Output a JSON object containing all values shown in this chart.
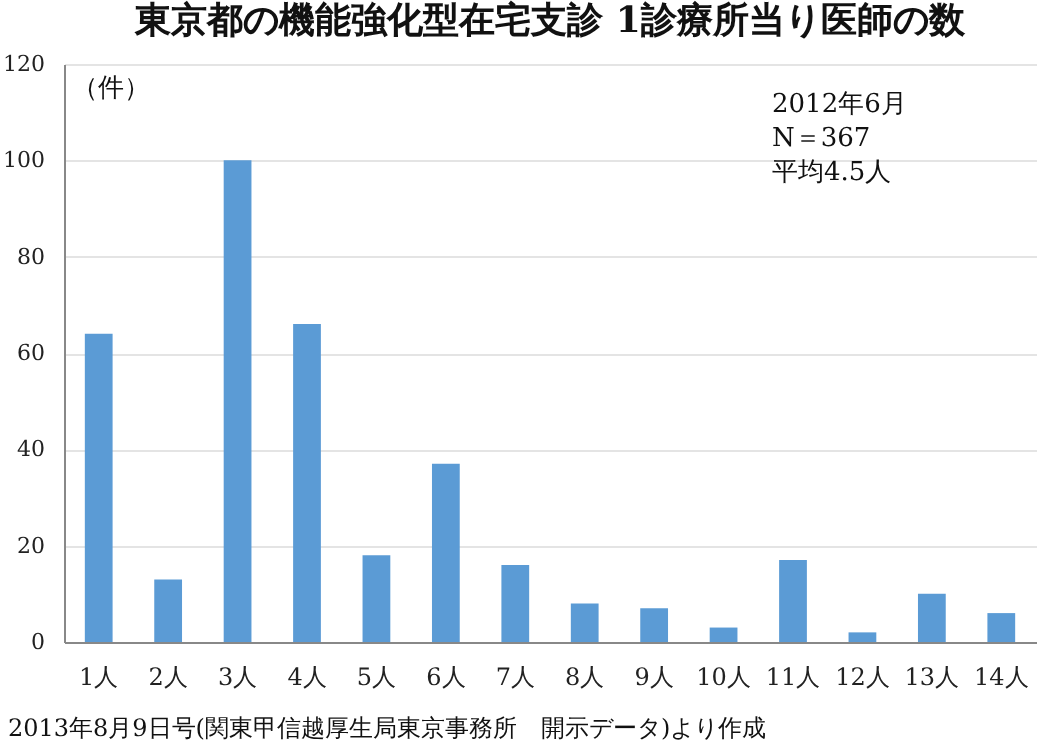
{
  "chart_data": {
    "type": "bar",
    "title": "東京都の機能強化型在宅支診 1診療所当り医師の数",
    "ylabel": "（件）",
    "categories": [
      "1人",
      "2人",
      "3人",
      "4人",
      "5人",
      "6人",
      "7人",
      "8人",
      "9人",
      "10人",
      "11人",
      "12人",
      "13人",
      "14人"
    ],
    "values": [
      64,
      13,
      100,
      66,
      18,
      37,
      16,
      8,
      7,
      3,
      17,
      2,
      10,
      6
    ],
    "color": "#5b9bd5",
    "ylim": [
      0,
      120
    ],
    "yticks": [
      0,
      20,
      40,
      60,
      80,
      100,
      120
    ],
    "grid": "y",
    "annotations": [
      "2012年6月",
      "N＝367",
      "平均4.5人",
      "2013年8月9日号(関東甲信越厚生局東京事務所　開示データ)より作成"
    ]
  }
}
